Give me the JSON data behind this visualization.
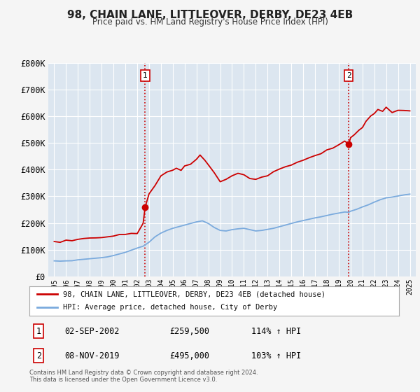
{
  "title": "98, CHAIN LANE, LITTLEOVER, DERBY, DE23 4EB",
  "subtitle": "Price paid vs. HM Land Registry's House Price Index (HPI)",
  "xlim": [
    1994.5,
    2025.5
  ],
  "ylim": [
    0,
    800000
  ],
  "yticks": [
    0,
    100000,
    200000,
    300000,
    400000,
    500000,
    600000,
    700000,
    800000
  ],
  "ytick_labels": [
    "£0",
    "£100K",
    "£200K",
    "£300K",
    "£400K",
    "£500K",
    "£600K",
    "£700K",
    "£800K"
  ],
  "xtick_years": [
    1995,
    1996,
    1997,
    1998,
    1999,
    2000,
    2001,
    2002,
    2003,
    2004,
    2005,
    2006,
    2007,
    2008,
    2009,
    2010,
    2011,
    2012,
    2013,
    2014,
    2015,
    2016,
    2017,
    2018,
    2019,
    2020,
    2021,
    2022,
    2023,
    2024,
    2025
  ],
  "red_line_color": "#cc0000",
  "blue_line_color": "#7aaadd",
  "background_color": "#f5f5f5",
  "plot_bg_color": "#dce6f0",
  "grid_color": "#ffffff",
  "transaction1": {
    "date": "02-SEP-2002",
    "price": 259500,
    "label": "1",
    "year": 2002.67,
    "hpi_pct": "114%"
  },
  "transaction2": {
    "date": "08-NOV-2019",
    "price": 495000,
    "label": "2",
    "year": 2019.85,
    "hpi_pct": "103%"
  },
  "legend_label_red": "98, CHAIN LANE, LITTLEOVER, DERBY, DE23 4EB (detached house)",
  "legend_label_blue": "HPI: Average price, detached house, City of Derby",
  "footer": "Contains HM Land Registry data © Crown copyright and database right 2024.\nThis data is licensed under the Open Government Licence v3.0."
}
